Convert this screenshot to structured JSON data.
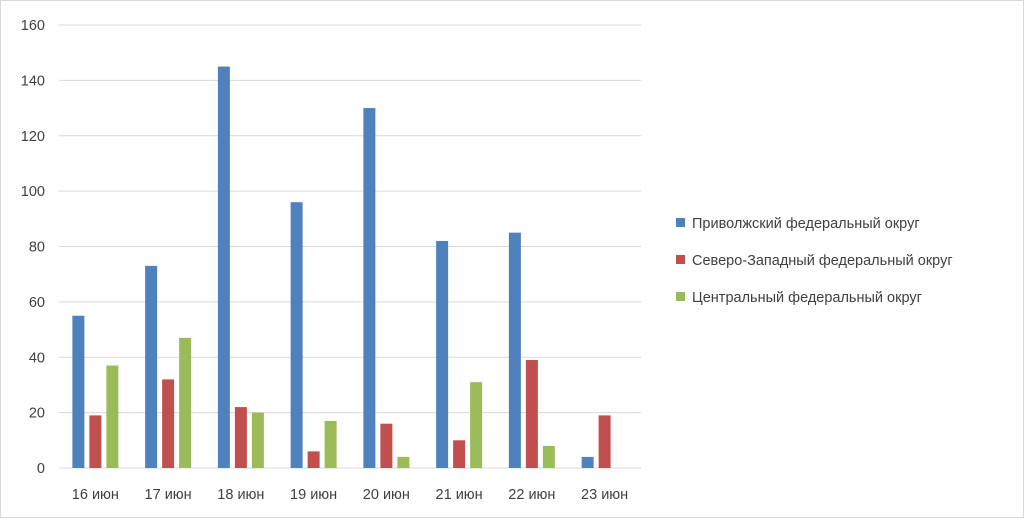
{
  "chart_data": {
    "type": "bar",
    "title": "",
    "xlabel": "",
    "ylabel": "",
    "ylim": [
      0,
      160
    ],
    "yticks": [
      0,
      20,
      40,
      60,
      80,
      100,
      120,
      140,
      160
    ],
    "grid": true,
    "legend_position": "right",
    "categories": [
      "16 июн",
      "17 июн",
      "18 июн",
      "19 июн",
      "20 июн",
      "21 июн",
      "22 июн",
      "23 июн"
    ],
    "series": [
      {
        "name": "Приволжский федеральный округ",
        "color": "#4f81bd",
        "values": [
          55,
          73,
          145,
          96,
          130,
          82,
          85,
          4
        ]
      },
      {
        "name": "Северо-Западный федеральный округ",
        "color": "#c0504d",
        "values": [
          19,
          32,
          22,
          6,
          16,
          10,
          39,
          19
        ]
      },
      {
        "name": "Центральный федеральный округ",
        "color": "#9bbb59",
        "values": [
          37,
          47,
          20,
          17,
          4,
          31,
          8,
          null
        ]
      }
    ]
  }
}
